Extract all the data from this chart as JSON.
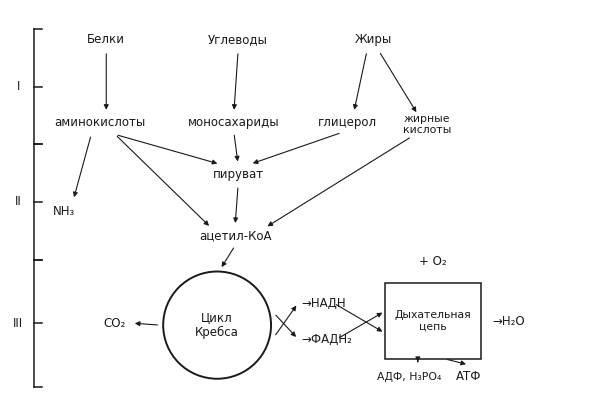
{
  "bg_color": "#ffffff",
  "text_color": "#1a1a1a",
  "figsize": [
    6.02,
    4.0
  ],
  "dpi": 100,
  "labels": {
    "belki": "Белки",
    "uglevody": "Углеводы",
    "zhiry": "Жиры",
    "aminokisloty": "аминокислоты",
    "monosakharidy": "моносахариды",
    "glitsero": "глицерол",
    "zhirnye": "жирные\nкислоты",
    "NH3": "NH₃",
    "piruvat": "пируват",
    "atsetil": "ацетил-КоА",
    "CO2": "CO₂",
    "kreb": "Цикл\nКребса",
    "NADH": "→НАДН",
    "FADH2": "→ФАДН₂",
    "dyhatelnaya": "Дыхательная\nцепь",
    "O2": "+ O₂",
    "H2O": "→H₂O",
    "ADF": "АДФ, H₃PO₄",
    "ATF": "АТФ",
    "I": "I",
    "II": "II",
    "III": "III"
  }
}
